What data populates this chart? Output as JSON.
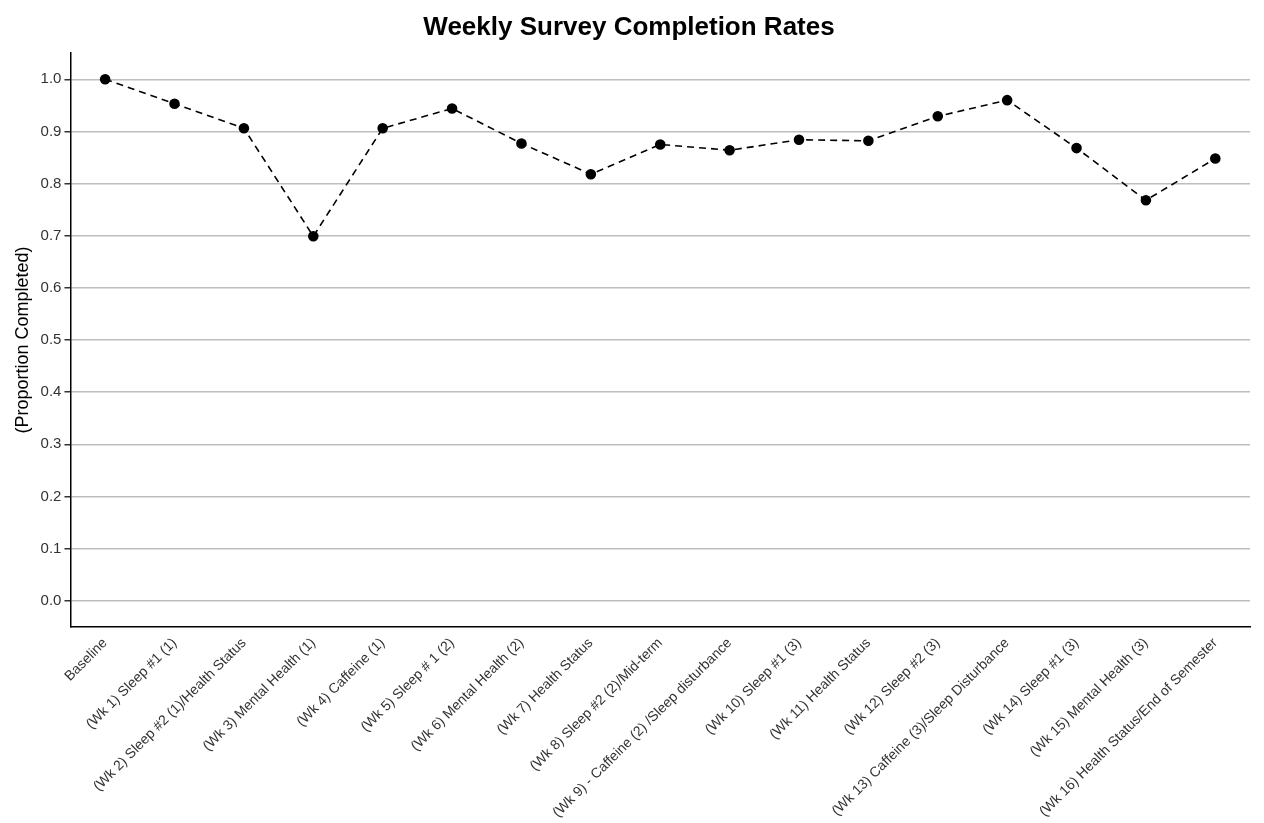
{
  "chart_data": {
    "type": "line",
    "title": "Weekly Survey Completion Rates",
    "ylabel": "(Proportion Completed)",
    "categories": [
      "Baseline",
      "(Wk 1) Sleep #1 (1)",
      "(Wk 2) Sleep #2 (1)/Health Status",
      "(Wk 3) Mental Health (1)",
      "(Wk 4) Caffeine (1)",
      "(Wk 5) Sleep # 1 (2)",
      "(Wk 6) Mental Health (2)",
      "(Wk 7) Health Status",
      "(Wk 8) Sleep #2 (2)/Mid-term",
      "(Wk 9) - Caffeine (2) /Sleep disturbance",
      "(Wk 10) Sleep #1 (3)",
      "(Wk 11) Health Status",
      "(Wk 12) Sleep #2 (3)",
      "(Wk 13) Caffeine (3)/Sleep Disturbance",
      "(Wk 14) Sleep #1 (3)",
      "(Wk 15) Mental Health (3)",
      "(Wk 16) Health Status/End of Semester"
    ],
    "series": [
      {
        "color": "#000000",
        "values": [
          1.0,
          0.953,
          0.906,
          0.699,
          0.906,
          0.944,
          0.877,
          0.818,
          0.875,
          0.864,
          0.884,
          0.882,
          0.929,
          0.96,
          0.868,
          0.768,
          0.848
        ]
      }
    ],
    "ylim": [
      -0.05,
      1.05
    ],
    "yticks": [
      {
        "value": 0,
        "label": "0.0"
      },
      0.1,
      0.2,
      0.3,
      0.4,
      0.5,
      0.6,
      0.7,
      0.8,
      0.9,
      {
        "value": 1,
        "label": "1.0"
      }
    ],
    "grid": "y",
    "legend": false,
    "marker": "circle",
    "line_style": "dashed"
  }
}
